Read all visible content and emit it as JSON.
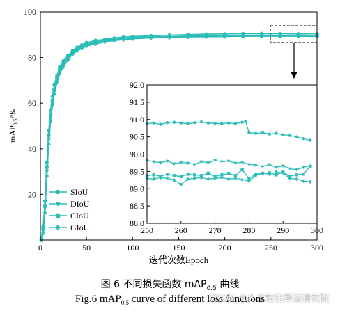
{
  "chart_data": [
    {
      "type": "line",
      "panel": "main",
      "xlabel": "迭代次数Epoch",
      "ylabel": "mAP0.5/%",
      "xlim": [
        0,
        300
      ],
      "ylim": [
        0,
        100
      ],
      "xticks": [
        0,
        50,
        100,
        150,
        200,
        250,
        300
      ],
      "yticks": [
        20,
        40,
        60,
        80,
        100
      ],
      "legend_position": "lower-left",
      "series": [
        {
          "name": "SIoU",
          "marker": "circle",
          "x": [
            1,
            3,
            5,
            7,
            9,
            11,
            13,
            15,
            18,
            21,
            25,
            30,
            35,
            40,
            45,
            50,
            60,
            70,
            80,
            90,
            100,
            120,
            140,
            160,
            180,
            200,
            220,
            240,
            260,
            280,
            300
          ],
          "y": [
            1,
            6,
            17,
            34,
            48,
            57,
            63,
            68,
            72,
            76,
            78.5,
            81,
            83,
            84.5,
            85.5,
            86.5,
            87.5,
            88,
            88.5,
            89,
            89.2,
            89.5,
            89.8,
            90,
            90.2,
            90.3,
            90.4,
            90.5,
            90.4,
            90.3,
            90.4
          ]
        },
        {
          "name": "DIoU",
          "marker": "triangle-down",
          "x": [
            1,
            3,
            5,
            7,
            9,
            11,
            13,
            15,
            18,
            21,
            25,
            30,
            35,
            40,
            45,
            50,
            60,
            70,
            80,
            90,
            100,
            120,
            140,
            160,
            180,
            200,
            220,
            240,
            260,
            280,
            300
          ],
          "y": [
            0,
            4,
            14,
            30,
            44,
            54,
            60,
            65,
            70,
            74,
            77,
            80,
            82,
            83.5,
            84.5,
            85.5,
            86.5,
            87.2,
            87.8,
            88.2,
            88.6,
            89,
            89.2,
            89.4,
            89.5,
            89.6,
            89.7,
            89.8,
            89.7,
            89.6,
            89.6
          ]
        },
        {
          "name": "CIoU",
          "marker": "square",
          "x": [
            1,
            3,
            5,
            7,
            9,
            11,
            13,
            15,
            18,
            21,
            25,
            30,
            35,
            40,
            45,
            50,
            60,
            70,
            80,
            90,
            100,
            120,
            140,
            160,
            180,
            200,
            220,
            240,
            260,
            280,
            300
          ],
          "y": [
            0,
            5,
            15,
            32,
            46,
            55,
            61,
            66,
            71,
            75,
            77.5,
            80.5,
            82.5,
            84,
            85,
            86,
            87,
            87.6,
            88,
            88.4,
            88.7,
            89,
            89.1,
            89.2,
            89.3,
            89.3,
            89.4,
            89.4,
            89.4,
            89.4,
            89.6
          ]
        },
        {
          "name": "GIoU",
          "marker": "diamond",
          "x": [
            1,
            3,
            5,
            7,
            9,
            11,
            13,
            15,
            18,
            21,
            25,
            30,
            35,
            40,
            45,
            50,
            60,
            70,
            80,
            90,
            100,
            120,
            140,
            160,
            180,
            200,
            220,
            240,
            260,
            280,
            300
          ],
          "y": [
            0,
            3,
            12,
            28,
            42,
            52,
            59,
            64,
            69,
            73,
            76,
            79,
            81.5,
            83,
            84,
            85,
            86,
            86.8,
            87.4,
            87.8,
            88.2,
            88.6,
            88.8,
            89,
            89.1,
            89.2,
            89.3,
            89.3,
            89.3,
            89.3,
            89.2
          ]
        }
      ]
    },
    {
      "type": "line",
      "panel": "inset",
      "xlim": [
        250,
        300
      ],
      "ylim": [
        88.0,
        92.0
      ],
      "xticks": [
        250,
        260,
        270,
        280,
        290,
        300
      ],
      "yticks": [
        88.0,
        88.5,
        89.0,
        89.5,
        90.0,
        90.5,
        91.0,
        91.5,
        92.0
      ],
      "series": [
        {
          "name": "SIoU",
          "marker": "circle",
          "x": [
            250,
            252,
            254,
            256,
            258,
            260,
            262,
            264,
            266,
            268,
            270,
            272,
            274,
            276,
            278,
            279,
            280,
            282,
            284,
            286,
            288,
            290,
            292,
            294,
            296,
            298
          ],
          "y": [
            90.88,
            90.9,
            90.86,
            90.91,
            90.92,
            90.9,
            90.88,
            90.91,
            90.93,
            90.9,
            90.89,
            90.88,
            90.9,
            90.88,
            90.92,
            90.95,
            90.62,
            90.6,
            90.62,
            90.58,
            90.6,
            90.56,
            90.54,
            90.5,
            90.45,
            90.4
          ]
        },
        {
          "name": "DIoU",
          "marker": "triangle-down",
          "x": [
            250,
            252,
            254,
            256,
            258,
            260,
            262,
            264,
            266,
            268,
            270,
            272,
            274,
            276,
            278,
            280,
            282,
            284,
            286,
            288,
            290,
            292,
            294,
            296,
            298
          ],
          "y": [
            89.82,
            89.78,
            89.75,
            89.8,
            89.72,
            89.76,
            89.74,
            89.7,
            89.78,
            89.75,
            89.82,
            89.78,
            89.8,
            89.74,
            89.76,
            89.7,
            89.68,
            89.64,
            89.7,
            89.62,
            89.66,
            89.58,
            89.55,
            89.62,
            89.66
          ]
        },
        {
          "name": "CIoU",
          "marker": "square",
          "x": [
            250,
            252,
            254,
            256,
            258,
            260,
            262,
            264,
            266,
            268,
            270,
            272,
            274,
            276,
            278,
            280,
            282,
            284,
            286,
            288,
            290,
            292,
            294,
            296,
            298
          ],
          "y": [
            89.38,
            89.4,
            89.36,
            89.42,
            89.38,
            89.35,
            89.42,
            89.4,
            89.38,
            89.45,
            89.36,
            89.4,
            89.44,
            89.38,
            89.55,
            89.3,
            89.42,
            89.44,
            89.46,
            89.4,
            89.48,
            89.36,
            89.4,
            89.42,
            89.65
          ]
        },
        {
          "name": "GIoU",
          "marker": "diamond",
          "x": [
            250,
            252,
            254,
            256,
            258,
            260,
            262,
            264,
            266,
            268,
            270,
            272,
            274,
            276,
            278,
            280,
            282,
            284,
            286,
            288,
            290,
            292,
            294,
            296,
            298
          ],
          "y": [
            89.3,
            89.28,
            89.32,
            89.3,
            89.25,
            89.12,
            89.28,
            89.3,
            89.32,
            89.28,
            89.3,
            89.32,
            89.28,
            89.3,
            89.26,
            89.22,
            89.38,
            89.45,
            89.42,
            89.48,
            89.46,
            89.3,
            89.28,
            89.22,
            89.2
          ]
        }
      ]
    }
  ],
  "colors": {
    "series": "#2bbdb8",
    "axis": "#000000",
    "highlight_box": "#000000"
  },
  "caption": {
    "cn_prefix": "图 6   不同损失函数 mAP",
    "cn_sub": "0.5",
    "cn_suffix": " 曲线",
    "en_prefix": "Fig.6    mAP",
    "en_sub": "0.5",
    "en_suffix": " curve of different loss functions"
  },
  "watermark": "CSDN @人工智能算法研究院"
}
